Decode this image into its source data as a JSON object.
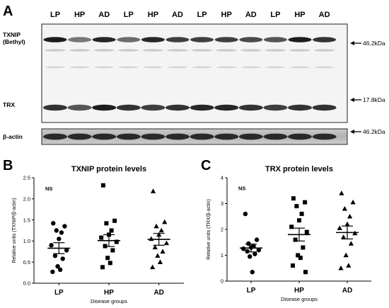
{
  "panel_a": {
    "letter": "A",
    "lanes": [
      "LP",
      "HP",
      "AD",
      "LP",
      "HP",
      "AD",
      "LP",
      "HP",
      "AD",
      "LP",
      "HP",
      "AD"
    ],
    "row_labels": {
      "txnip": "TXNIP",
      "txnip_sub": "(Bethyl)",
      "trx": "TRX",
      "actin": "β-actin"
    },
    "markers": [
      "46.2kDa",
      "17.8kDa",
      "46.2kDa"
    ]
  },
  "chart_data": [
    {
      "panel": "B",
      "type": "scatter",
      "title": "TXNIP protein levels",
      "xlabel": "Disease groups",
      "ylabel": "Relative units (TXNIP/β-actin)",
      "ylim": [
        0,
        2.5
      ],
      "yticks": [
        "0.0",
        "0.5",
        "1.0",
        "1.5",
        "2.0",
        "2.5"
      ],
      "annotation": "NS",
      "categories": [
        "LP",
        "HP",
        "AD"
      ],
      "series": [
        {
          "marker": "circle",
          "values": [
            1.42,
            1.35,
            1.25,
            1.2,
            1.05,
            0.9,
            0.78,
            0.65,
            0.58,
            0.4,
            0.32,
            0.27
          ],
          "mean": 0.83,
          "sem": 0.13
        },
        {
          "marker": "square",
          "values": [
            2.32,
            1.48,
            1.42,
            1.25,
            1.15,
            1.08,
            0.98,
            0.88,
            0.78,
            0.6,
            0.48,
            0.38
          ],
          "mean": 1.01,
          "sem": 0.14
        },
        {
          "marker": "triangle",
          "values": [
            2.18,
            1.45,
            1.35,
            1.25,
            1.15,
            1.05,
            0.95,
            0.85,
            0.75,
            0.65,
            0.5,
            0.38
          ],
          "mean": 1.04,
          "sem": 0.14
        }
      ]
    },
    {
      "panel": "C",
      "type": "scatter",
      "title": "TRX protein levels",
      "xlabel": "Disease groups",
      "ylabel": "Relative units (TRX/β-actin)",
      "ylim": [
        0,
        4
      ],
      "yticks": [
        "0",
        "1",
        "2",
        "3",
        "4"
      ],
      "annotation": "NS",
      "categories": [
        "LP",
        "HP",
        "AD"
      ],
      "series": [
        {
          "marker": "circle",
          "values": [
            2.6,
            1.6,
            1.45,
            1.35,
            1.3,
            1.25,
            1.2,
            1.15,
            1.05,
            0.95,
            0.35
          ],
          "mean": 1.28,
          "sem": 0.15
        },
        {
          "marker": "square",
          "values": [
            3.2,
            3.05,
            2.9,
            2.6,
            2.35,
            2.1,
            1.9,
            1.6,
            1.3,
            1.0,
            0.9,
            0.6,
            0.35
          ],
          "mean": 1.8,
          "sem": 0.25
        },
        {
          "marker": "triangle",
          "values": [
            3.4,
            3.05,
            2.8,
            2.5,
            2.2,
            2.05,
            1.85,
            1.7,
            1.45,
            1.0,
            0.6,
            0.5
          ],
          "mean": 1.88,
          "sem": 0.25
        }
      ]
    }
  ]
}
